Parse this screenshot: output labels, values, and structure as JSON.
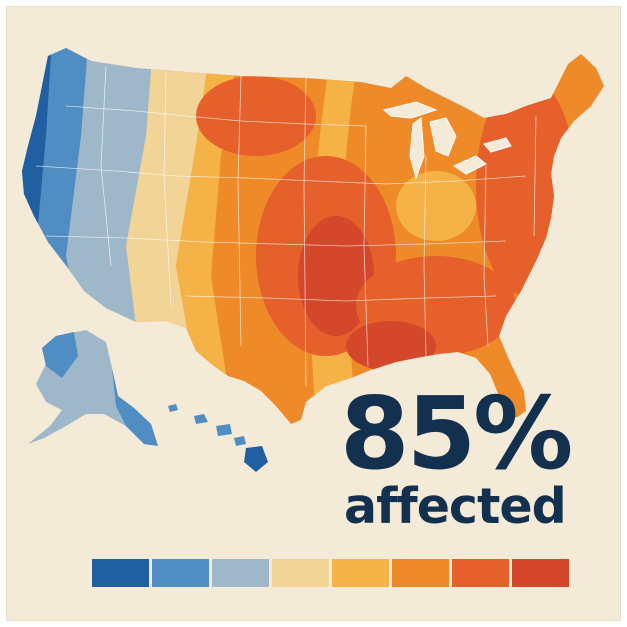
{
  "stat": {
    "value": "85%",
    "label": "affected"
  },
  "legend": {
    "swatches": [
      {
        "color": "#1f5fa2"
      },
      {
        "color": "#4f8dc2"
      },
      {
        "color": "#9eb8c9"
      },
      {
        "color": "#f2d497"
      },
      {
        "color": "#f5b246"
      },
      {
        "color": "#ef8a28"
      },
      {
        "color": "#e5602a"
      },
      {
        "color": "#d4472a"
      }
    ]
  },
  "colors": {
    "background": "#f3ead8",
    "text": "#14304f",
    "border": "#ffffff"
  }
}
